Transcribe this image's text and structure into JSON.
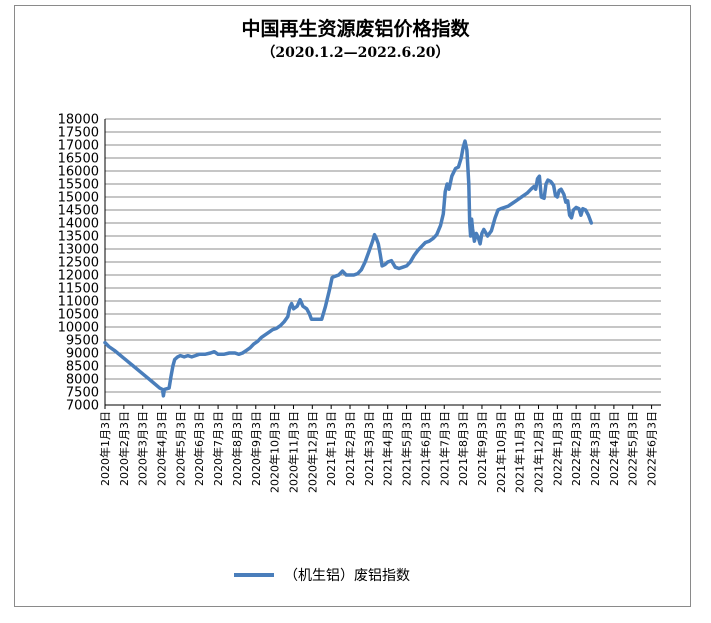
{
  "chart_data": {
    "type": "line",
    "title": "中国再生资源废铝价格指数",
    "subtitle": "（2020.1.2—2022.6.20）",
    "xlabel": "",
    "ylabel": "",
    "ylim": [
      7000,
      18000
    ],
    "ytick_step": 500,
    "grid": true,
    "legend_position": "bottom",
    "line_color": "#4a7ebb",
    "categories": [
      "2020年1月3日",
      "2020年2月3日",
      "2020年3月3日",
      "2020年4月3日",
      "2020年5月3日",
      "2020年6月3日",
      "2020年7月3日",
      "2020年8月3日",
      "2020年9月3日",
      "2020年10月3日",
      "2020年11月3日",
      "2020年12月3日",
      "2021年1月3日",
      "2021年2月3日",
      "2021年3月3日",
      "2021年4月3日",
      "2021年5月3日",
      "2021年6月3日",
      "2021年7月3日",
      "2021年8月3日",
      "2021年9月3日",
      "2021年10月3日",
      "2021年11月3日",
      "2021年12月3日",
      "2022年1月3日",
      "2022年2月3日",
      "2022年3月3日",
      "2022年4月3日",
      "2022年5月3日",
      "2022年6月3日"
    ],
    "series": [
      {
        "name": "（机生铝）废铝指数",
        "values": [
          [
            0.0,
            9400
          ],
          [
            0.2,
            9250
          ],
          [
            0.5,
            9100
          ],
          [
            1.0,
            8800
          ],
          [
            1.5,
            8500
          ],
          [
            2.0,
            8200
          ],
          [
            2.5,
            7900
          ],
          [
            2.9,
            7650
          ],
          [
            3.05,
            7600
          ],
          [
            3.1,
            7350
          ],
          [
            3.15,
            7600
          ],
          [
            3.4,
            7650
          ],
          [
            3.5,
            8100
          ],
          [
            3.6,
            8500
          ],
          [
            3.7,
            8750
          ],
          [
            3.85,
            8850
          ],
          [
            4.0,
            8900
          ],
          [
            4.2,
            8850
          ],
          [
            4.4,
            8900
          ],
          [
            4.6,
            8850
          ],
          [
            4.8,
            8900
          ],
          [
            5.0,
            8950
          ],
          [
            5.3,
            8950
          ],
          [
            5.6,
            9000
          ],
          [
            5.8,
            9050
          ],
          [
            6.0,
            8950
          ],
          [
            6.3,
            8950
          ],
          [
            6.6,
            9000
          ],
          [
            6.9,
            9000
          ],
          [
            7.1,
            8950
          ],
          [
            7.3,
            9000
          ],
          [
            7.5,
            9100
          ],
          [
            7.7,
            9200
          ],
          [
            7.9,
            9350
          ],
          [
            8.1,
            9450
          ],
          [
            8.3,
            9600
          ],
          [
            8.5,
            9700
          ],
          [
            8.7,
            9800
          ],
          [
            8.9,
            9900
          ],
          [
            9.1,
            9950
          ],
          [
            9.3,
            10050
          ],
          [
            9.5,
            10200
          ],
          [
            9.7,
            10400
          ],
          [
            9.8,
            10750
          ],
          [
            9.9,
            10900
          ],
          [
            10.0,
            10700
          ],
          [
            10.2,
            10800
          ],
          [
            10.35,
            11050
          ],
          [
            10.5,
            10800
          ],
          [
            10.7,
            10700
          ],
          [
            10.85,
            10500
          ],
          [
            10.95,
            10300
          ],
          [
            11.1,
            10300
          ],
          [
            11.3,
            10300
          ],
          [
            11.5,
            10300
          ],
          [
            11.7,
            10800
          ],
          [
            11.9,
            11400
          ],
          [
            12.05,
            11900
          ],
          [
            12.2,
            11950
          ],
          [
            12.4,
            12000
          ],
          [
            12.6,
            12150
          ],
          [
            12.8,
            12000
          ],
          [
            13.0,
            12000
          ],
          [
            13.2,
            12000
          ],
          [
            13.4,
            12050
          ],
          [
            13.6,
            12200
          ],
          [
            13.8,
            12500
          ],
          [
            14.0,
            12900
          ],
          [
            14.2,
            13300
          ],
          [
            14.3,
            13550
          ],
          [
            14.4,
            13400
          ],
          [
            14.5,
            13200
          ],
          [
            14.6,
            12800
          ],
          [
            14.7,
            12350
          ],
          [
            14.85,
            12400
          ],
          [
            15.0,
            12500
          ],
          [
            15.2,
            12550
          ],
          [
            15.4,
            12300
          ],
          [
            15.6,
            12250
          ],
          [
            15.8,
            12300
          ],
          [
            16.0,
            12350
          ],
          [
            16.2,
            12500
          ],
          [
            16.4,
            12750
          ],
          [
            16.6,
            12950
          ],
          [
            16.8,
            13100
          ],
          [
            17.0,
            13250
          ],
          [
            17.2,
            13300
          ],
          [
            17.4,
            13400
          ],
          [
            17.6,
            13550
          ],
          [
            17.8,
            13900
          ],
          [
            17.95,
            14350
          ],
          [
            18.05,
            15200
          ],
          [
            18.15,
            15500
          ],
          [
            18.25,
            15300
          ],
          [
            18.4,
            15800
          ],
          [
            18.6,
            16100
          ],
          [
            18.75,
            16150
          ],
          [
            18.9,
            16500
          ],
          [
            19.0,
            16900
          ],
          [
            19.1,
            17150
          ],
          [
            19.2,
            16800
          ],
          [
            19.3,
            15500
          ],
          [
            19.35,
            14000
          ],
          [
            19.4,
            13500
          ],
          [
            19.45,
            14150
          ],
          [
            19.5,
            13800
          ],
          [
            19.6,
            13300
          ],
          [
            19.7,
            13600
          ],
          [
            19.8,
            13450
          ],
          [
            19.9,
            13200
          ],
          [
            20.0,
            13600
          ],
          [
            20.1,
            13750
          ],
          [
            20.3,
            13500
          ],
          [
            20.5,
            13700
          ],
          [
            20.7,
            14200
          ],
          [
            20.85,
            14500
          ],
          [
            21.0,
            14550
          ],
          [
            21.2,
            14600
          ],
          [
            21.4,
            14650
          ],
          [
            21.6,
            14750
          ],
          [
            21.8,
            14850
          ],
          [
            22.0,
            14950
          ],
          [
            22.2,
            15050
          ],
          [
            22.4,
            15150
          ],
          [
            22.6,
            15300
          ],
          [
            22.75,
            15400
          ],
          [
            22.85,
            15300
          ],
          [
            22.95,
            15700
          ],
          [
            23.05,
            15800
          ],
          [
            23.15,
            15000
          ],
          [
            23.3,
            14950
          ],
          [
            23.4,
            15500
          ],
          [
            23.5,
            15650
          ],
          [
            23.65,
            15600
          ],
          [
            23.8,
            15450
          ],
          [
            23.9,
            15050
          ],
          [
            24.0,
            15000
          ],
          [
            24.1,
            15250
          ],
          [
            24.2,
            15300
          ],
          [
            24.35,
            15100
          ],
          [
            24.45,
            14800
          ],
          [
            24.55,
            14850
          ],
          [
            24.65,
            14300
          ],
          [
            24.75,
            14200
          ],
          [
            24.85,
            14500
          ],
          [
            25.0,
            14600
          ],
          [
            25.15,
            14550
          ],
          [
            25.25,
            14300
          ],
          [
            25.35,
            14550
          ],
          [
            25.5,
            14500
          ],
          [
            25.65,
            14300
          ],
          [
            25.8,
            14000
          ]
        ]
      }
    ]
  }
}
